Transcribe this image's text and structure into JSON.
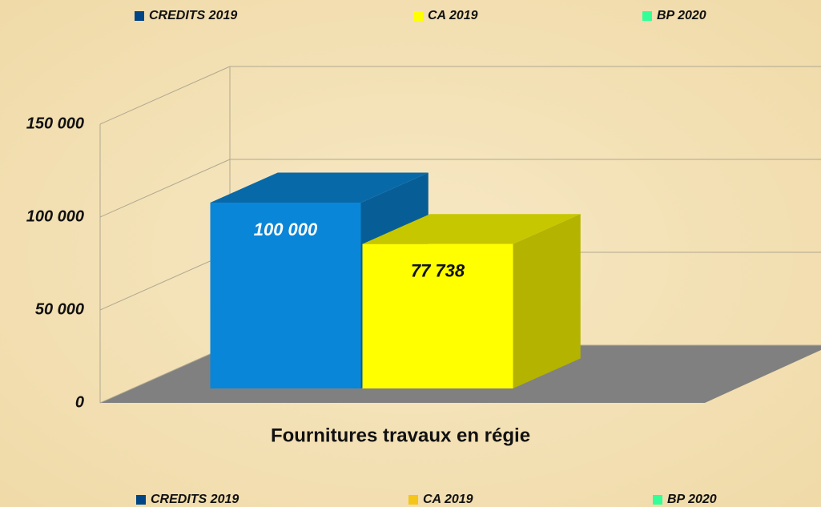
{
  "chart_data": {
    "type": "bar3d",
    "categories": [
      "Fournitures travaux en régie"
    ],
    "series": [
      {
        "name": "CREDITS 2019",
        "color": "#0a86d8",
        "values": [
          100000
        ],
        "value_labels": [
          "100 000"
        ]
      },
      {
        "name": "CA 2019",
        "color": "#ffff00",
        "values": [
          77738
        ],
        "value_labels": [
          "77 738"
        ]
      },
      {
        "name": "BP 2020",
        "color": "#33ff99",
        "values": [
          null
        ],
        "value_labels": [
          null
        ]
      }
    ],
    "legend_colors": [
      "#004586",
      "#ffff00",
      "#33ff99"
    ],
    "legend_colors_bottom": [
      "#004586",
      "#f5c518",
      "#33ff99"
    ],
    "ylim": [
      0,
      150000
    ],
    "yticks": [
      0,
      {
        "value": 50000,
        "label": "50 000"
      },
      {
        "value": 100000,
        "label": "100 000"
      },
      {
        "value": 150000,
        "label": "150 000"
      }
    ],
    "grid": true
  }
}
